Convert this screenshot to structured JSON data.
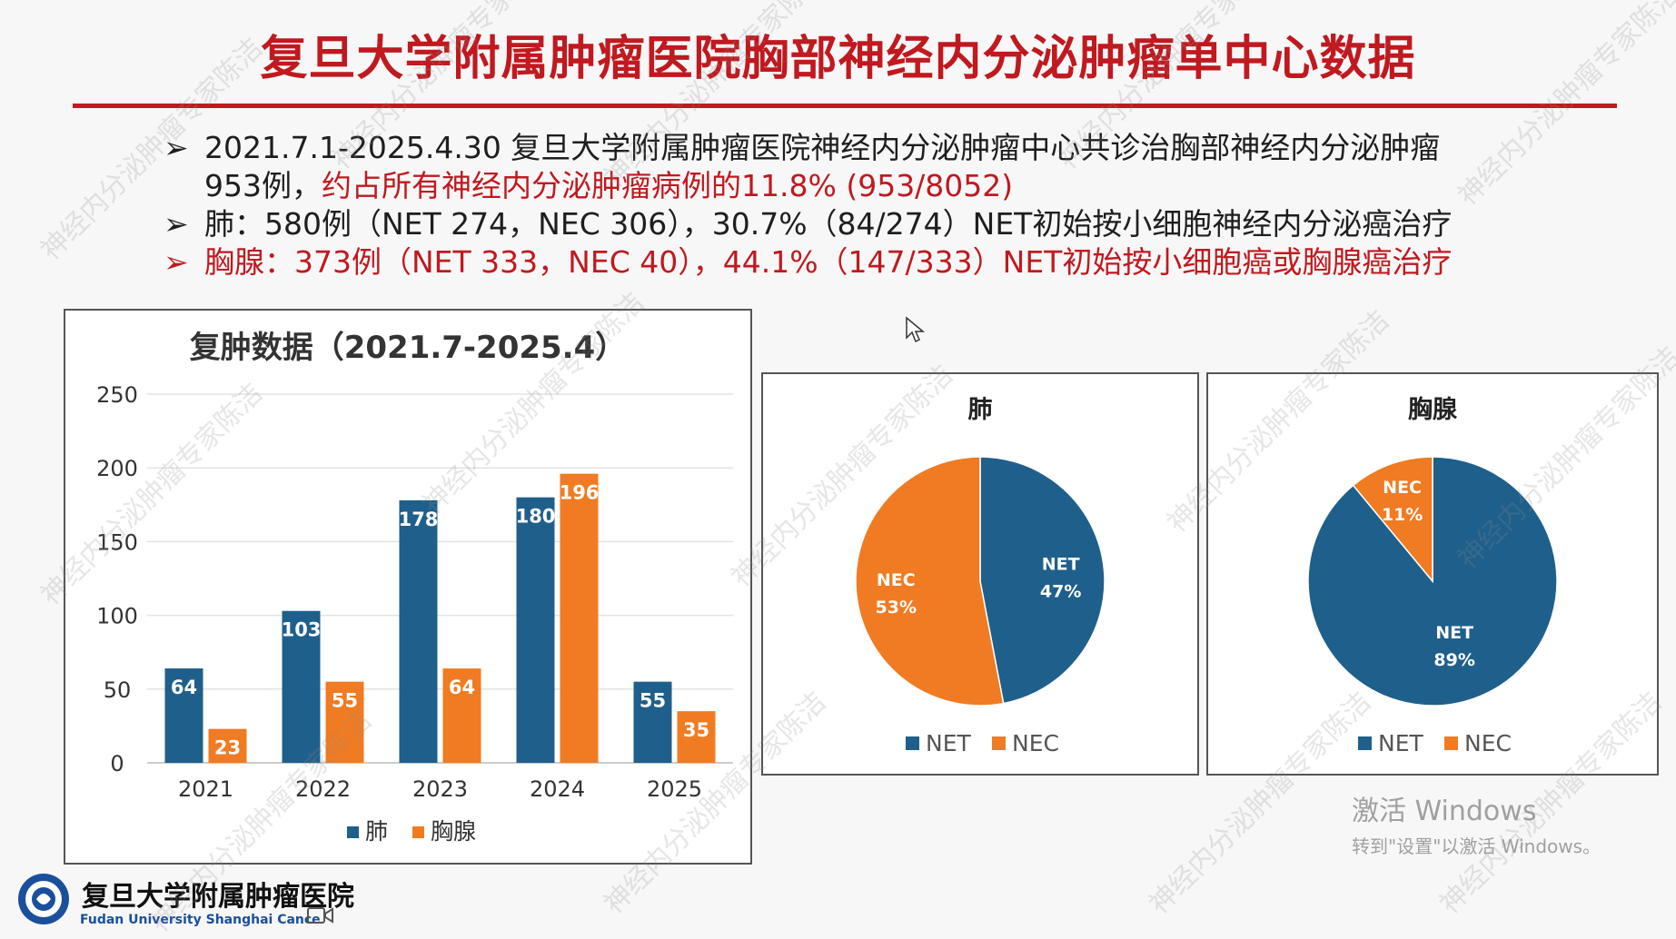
{
  "slide": {
    "title": "复旦大学附属肿瘤医院胸部神经内分泌肿瘤单中心数据",
    "bullets": [
      {
        "marker": "➢",
        "text": "2021.7.1-2025.4.30 复旦大学附属肿瘤医院神经内分泌肿瘤中心共诊治胸部神经内分泌肿瘤"
      },
      {
        "marker": "",
        "text_pre": "953例，",
        "text_red": "约占所有神经内分泌肿瘤病例的11.8% (953/8052)"
      },
      {
        "marker": "➢",
        "text": "肺：580例（NET 274，NEC 306），30.7%（84/274）NET初始按小细胞神经内分泌癌治疗"
      },
      {
        "marker": "➢",
        "text": "胸腺：373例（NET 333，NEC 40），44.1%（147/333）NET初始按小细胞癌或胸腺癌治疗"
      }
    ],
    "footer": {
      "institution_cn": "复旦大学附属肿瘤医院",
      "institution_en": "Fudan University Shanghai Cance"
    },
    "watermark": "神经内分泌肿瘤专家陈洁",
    "os_overlay": {
      "line1": "激活 Windows",
      "line2": "转到\"设置\"以激活 Windows。"
    }
  },
  "colors": {
    "accent_red": "#c0191f",
    "lung_blue": "#1f5f8b",
    "thymus_orange": "#f07b22"
  },
  "chart_data": [
    {
      "type": "bar",
      "title": "复肿数据（2021.7-2025.4）",
      "categories": [
        "2021",
        "2022",
        "2023",
        "2024",
        "2025"
      ],
      "series": [
        {
          "name": "肺",
          "values": [
            64,
            103,
            178,
            180,
            55
          ]
        },
        {
          "name": "胸腺",
          "values": [
            23,
            55,
            64,
            196,
            35
          ]
        }
      ],
      "ylim": [
        0,
        250
      ],
      "yticks": [
        0,
        50,
        100,
        150,
        200,
        250
      ],
      "grid": true,
      "legend": "bottom"
    },
    {
      "type": "pie",
      "title": "肺",
      "slices": [
        {
          "name": "NET",
          "value": 47,
          "label": "47%"
        },
        {
          "name": "NEC",
          "value": 53,
          "label": "53%"
        }
      ],
      "legend": [
        "NET",
        "NEC"
      ]
    },
    {
      "type": "pie",
      "title": "胸腺",
      "slices": [
        {
          "name": "NET",
          "value": 89,
          "label": "89%"
        },
        {
          "name": "NEC",
          "value": 11,
          "label": "11%"
        }
      ],
      "legend": [
        "NET",
        "NEC"
      ]
    }
  ]
}
